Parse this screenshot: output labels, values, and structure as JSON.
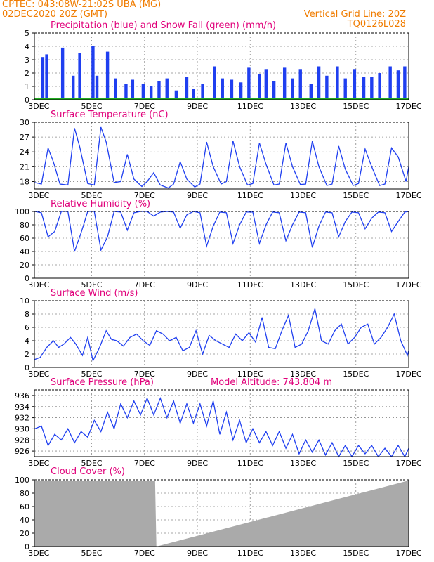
{
  "header": {
    "line1_left": "CPTEC:   043:08W-21:02S   UBA (MG)",
    "line2_left": "02DEC2020 20Z (GMT)",
    "vgrid_note": "Vertical Grid Line: 20Z",
    "model_code": "TQ0126L028"
  },
  "colors": {
    "header": "#f07c00",
    "title": "#e0007a",
    "series": "#1f3ff0",
    "snow": "#22aa22",
    "cloud": "#aaaaaa"
  },
  "x_axis": {
    "labels": [
      "3DEC",
      "5DEC",
      "7DEC",
      "9DEC",
      "11DEC",
      "13DEC",
      "15DEC",
      "17DEC"
    ],
    "range_days": [
      2.833,
      17.0
    ]
  },
  "panels": {
    "precip": {
      "title": "Precipitation (blue) and Snow Fall (green) (mm/h)",
      "yticks": [
        "0",
        "1",
        "2",
        "3",
        "4",
        "5"
      ]
    },
    "temp": {
      "title": "Surface Temperature (nC)",
      "yticks": [
        "18",
        "21",
        "24",
        "27",
        "30"
      ]
    },
    "rh": {
      "title": "Relative Humidity (%)",
      "yticks": [
        "0",
        "20",
        "40",
        "60",
        "80",
        "100"
      ]
    },
    "wind": {
      "title": "Surface Wind (m/s)",
      "yticks": [
        "0",
        "2",
        "4",
        "6",
        "8",
        "10"
      ]
    },
    "pres": {
      "title": "Surface Pressure (hPa)",
      "altitude": "Model Altitude: 743.804 m",
      "yticks": [
        "926",
        "928",
        "930",
        "932",
        "934",
        "936"
      ]
    },
    "cloud": {
      "title": "Cloud Cover (%)",
      "yticks": [
        "0",
        "20",
        "40",
        "60",
        "80",
        "100"
      ]
    }
  },
  "chart_data": [
    {
      "type": "bar",
      "title": "Precipitation (blue) and Snow Fall (green) (mm/h)",
      "ylim": [
        0,
        5
      ],
      "x": [
        3.15,
        3.3,
        3.9,
        4.3,
        4.55,
        5.05,
        5.2,
        5.6,
        5.9,
        6.3,
        6.55,
        6.95,
        7.25,
        7.55,
        7.85,
        8.2,
        8.6,
        8.85,
        9.2,
        9.65,
        9.95,
        10.3,
        10.65,
        10.95,
        11.35,
        11.6,
        11.9,
        12.3,
        12.6,
        12.9,
        13.3,
        13.6,
        13.9,
        14.3,
        14.6,
        14.95,
        15.3,
        15.6,
        15.9,
        16.3,
        16.6,
        16.85
      ],
      "values": [
        3.2,
        3.4,
        3.9,
        1.8,
        3.5,
        4.0,
        1.8,
        3.6,
        1.6,
        1.2,
        1.5,
        1.2,
        1.0,
        1.4,
        1.6,
        0.7,
        1.7,
        0.8,
        1.2,
        2.5,
        1.6,
        1.5,
        1.3,
        2.4,
        1.9,
        2.3,
        1.4,
        2.4,
        1.6,
        2.3,
        1.2,
        2.5,
        1.8,
        2.5,
        1.6,
        2.3,
        1.7,
        1.7,
        2.0,
        2.5,
        2.2,
        2.5
      ],
      "snow": 0
    },
    {
      "type": "line",
      "title": "Surface Temperature (nC)",
      "ylim": [
        16.5,
        30
      ],
      "x": [
        2.85,
        3.1,
        3.35,
        3.55,
        3.8,
        4.1,
        4.35,
        4.55,
        4.85,
        5.1,
        5.35,
        5.55,
        5.85,
        6.1,
        6.35,
        6.6,
        6.9,
        7.1,
        7.35,
        7.6,
        7.9,
        8.1,
        8.35,
        8.6,
        8.9,
        9.1,
        9.35,
        9.6,
        9.9,
        10.1,
        10.35,
        10.6,
        10.9,
        11.1,
        11.35,
        11.6,
        11.9,
        12.1,
        12.35,
        12.6,
        12.9,
        13.1,
        13.35,
        13.6,
        13.9,
        14.1,
        14.35,
        14.6,
        14.9,
        15.1,
        15.35,
        15.6,
        15.9,
        16.1,
        16.35,
        16.6,
        16.9,
        17.0
      ],
      "values": [
        17.8,
        17.5,
        24.8,
        22.0,
        17.5,
        17.3,
        28.8,
        25.0,
        17.6,
        17.3,
        29.0,
        26.0,
        17.8,
        18.0,
        23.5,
        18.5,
        17.0,
        18.0,
        19.8,
        17.3,
        16.7,
        17.5,
        22.0,
        18.5,
        16.9,
        17.5,
        26.0,
        21.0,
        17.5,
        18.0,
        26.2,
        21.0,
        17.3,
        17.6,
        25.8,
        21.5,
        17.3,
        17.5,
        25.8,
        21.0,
        17.4,
        17.5,
        26.2,
        21.0,
        17.2,
        17.5,
        25.2,
        20.5,
        17.2,
        17.6,
        24.6,
        21.0,
        17.2,
        17.5,
        24.8,
        23.0,
        18.0,
        21.0
      ]
    },
    {
      "type": "line",
      "title": "Relative Humidity (%)",
      "ylim": [
        0,
        100
      ],
      "x": [
        2.85,
        3.1,
        3.35,
        3.6,
        3.85,
        4.1,
        4.35,
        4.6,
        4.85,
        5.1,
        5.35,
        5.6,
        5.85,
        6.1,
        6.35,
        6.6,
        6.85,
        7.1,
        7.35,
        7.6,
        7.85,
        8.1,
        8.35,
        8.6,
        8.85,
        9.1,
        9.35,
        9.6,
        9.85,
        10.1,
        10.35,
        10.6,
        10.85,
        11.1,
        11.35,
        11.6,
        11.85,
        12.1,
        12.35,
        12.6,
        12.85,
        13.1,
        13.35,
        13.6,
        13.85,
        14.1,
        14.35,
        14.6,
        14.85,
        15.1,
        15.35,
        15.6,
        15.85,
        16.1,
        16.35,
        16.6,
        16.85,
        17.0
      ],
      "values": [
        100,
        98,
        62,
        70,
        100,
        100,
        40,
        68,
        100,
        100,
        42,
        62,
        100,
        99,
        72,
        98,
        100,
        100,
        93,
        99,
        100,
        99,
        75,
        95,
        100,
        98,
        48,
        78,
        99,
        98,
        52,
        80,
        99,
        99,
        52,
        80,
        99,
        98,
        56,
        80,
        99,
        98,
        46,
        78,
        99,
        98,
        62,
        85,
        99,
        98,
        74,
        90,
        99,
        98,
        70,
        85,
        99,
        100
      ]
    },
    {
      "type": "line",
      "title": "Surface Wind (m/s)",
      "ylim": [
        0,
        10
      ],
      "x": [
        2.85,
        3.05,
        3.3,
        3.55,
        3.75,
        3.95,
        4.2,
        4.4,
        4.65,
        4.85,
        5.05,
        5.3,
        5.55,
        5.75,
        5.95,
        6.2,
        6.45,
        6.7,
        6.95,
        7.2,
        7.45,
        7.7,
        7.95,
        8.2,
        8.45,
        8.7,
        8.95,
        9.2,
        9.45,
        9.7,
        9.95,
        10.2,
        10.45,
        10.7,
        10.95,
        11.2,
        11.45,
        11.7,
        11.95,
        12.2,
        12.45,
        12.7,
        12.95,
        13.2,
        13.45,
        13.7,
        13.95,
        14.2,
        14.45,
        14.7,
        14.95,
        15.2,
        15.45,
        15.7,
        15.95,
        16.2,
        16.45,
        16.7,
        16.95,
        17.0
      ],
      "values": [
        1.2,
        1.5,
        3.0,
        4.0,
        3.0,
        3.5,
        4.5,
        3.5,
        1.8,
        4.5,
        1.0,
        3.0,
        5.5,
        4.2,
        4.0,
        3.2,
        4.5,
        5.0,
        4.0,
        3.3,
        5.5,
        5.0,
        4.0,
        4.5,
        2.5,
        3.0,
        5.5,
        2.0,
        4.8,
        4.0,
        3.5,
        3.0,
        5.0,
        4.0,
        5.2,
        3.8,
        7.5,
        3.0,
        2.8,
        5.5,
        7.8,
        3.0,
        3.5,
        5.5,
        8.8,
        4.0,
        3.5,
        5.5,
        6.5,
        3.5,
        4.5,
        6.0,
        6.5,
        3.5,
        4.5,
        6.0,
        8.0,
        4.0,
        1.8,
        2.5
      ]
    },
    {
      "type": "line",
      "title": "Surface Pressure (hPa)",
      "ylim": [
        925,
        937
      ],
      "x": [
        2.85,
        3.1,
        3.35,
        3.6,
        3.85,
        4.1,
        4.35,
        4.6,
        4.85,
        5.1,
        5.35,
        5.6,
        5.85,
        6.1,
        6.35,
        6.6,
        6.85,
        7.1,
        7.35,
        7.6,
        7.85,
        8.1,
        8.35,
        8.6,
        8.85,
        9.1,
        9.35,
        9.6,
        9.85,
        10.1,
        10.35,
        10.6,
        10.85,
        11.1,
        11.35,
        11.6,
        11.85,
        12.1,
        12.35,
        12.6,
        12.85,
        13.1,
        13.35,
        13.6,
        13.85,
        14.1,
        14.35,
        14.6,
        14.85,
        15.1,
        15.35,
        15.6,
        15.85,
        16.1,
        16.35,
        16.6,
        16.85,
        17.0
      ],
      "values": [
        930.0,
        930.5,
        927.0,
        929.0,
        928.0,
        930.0,
        927.5,
        929.5,
        928.5,
        931.5,
        929.5,
        933.0,
        930.0,
        934.5,
        932.0,
        935.0,
        932.5,
        935.5,
        932.5,
        935.5,
        932.0,
        935.0,
        931.0,
        934.5,
        931.0,
        934.5,
        930.5,
        935.0,
        929.0,
        933.0,
        928.0,
        931.5,
        927.5,
        930.0,
        927.5,
        929.5,
        927.0,
        929.5,
        926.5,
        929.0,
        925.5,
        928.0,
        925.8,
        928.0,
        925.3,
        927.5,
        925.0,
        927.0,
        925.0,
        927.0,
        925.5,
        927.0,
        925.0,
        926.5,
        925.0,
        927.0,
        925.0,
        926.5
      ]
    },
    {
      "type": "area",
      "title": "Cloud Cover (%)",
      "ylim": [
        0,
        100
      ],
      "x": [
        2.85,
        7.4,
        7.45,
        17.0
      ],
      "values": [
        99,
        99,
        0,
        99
      ]
    }
  ]
}
